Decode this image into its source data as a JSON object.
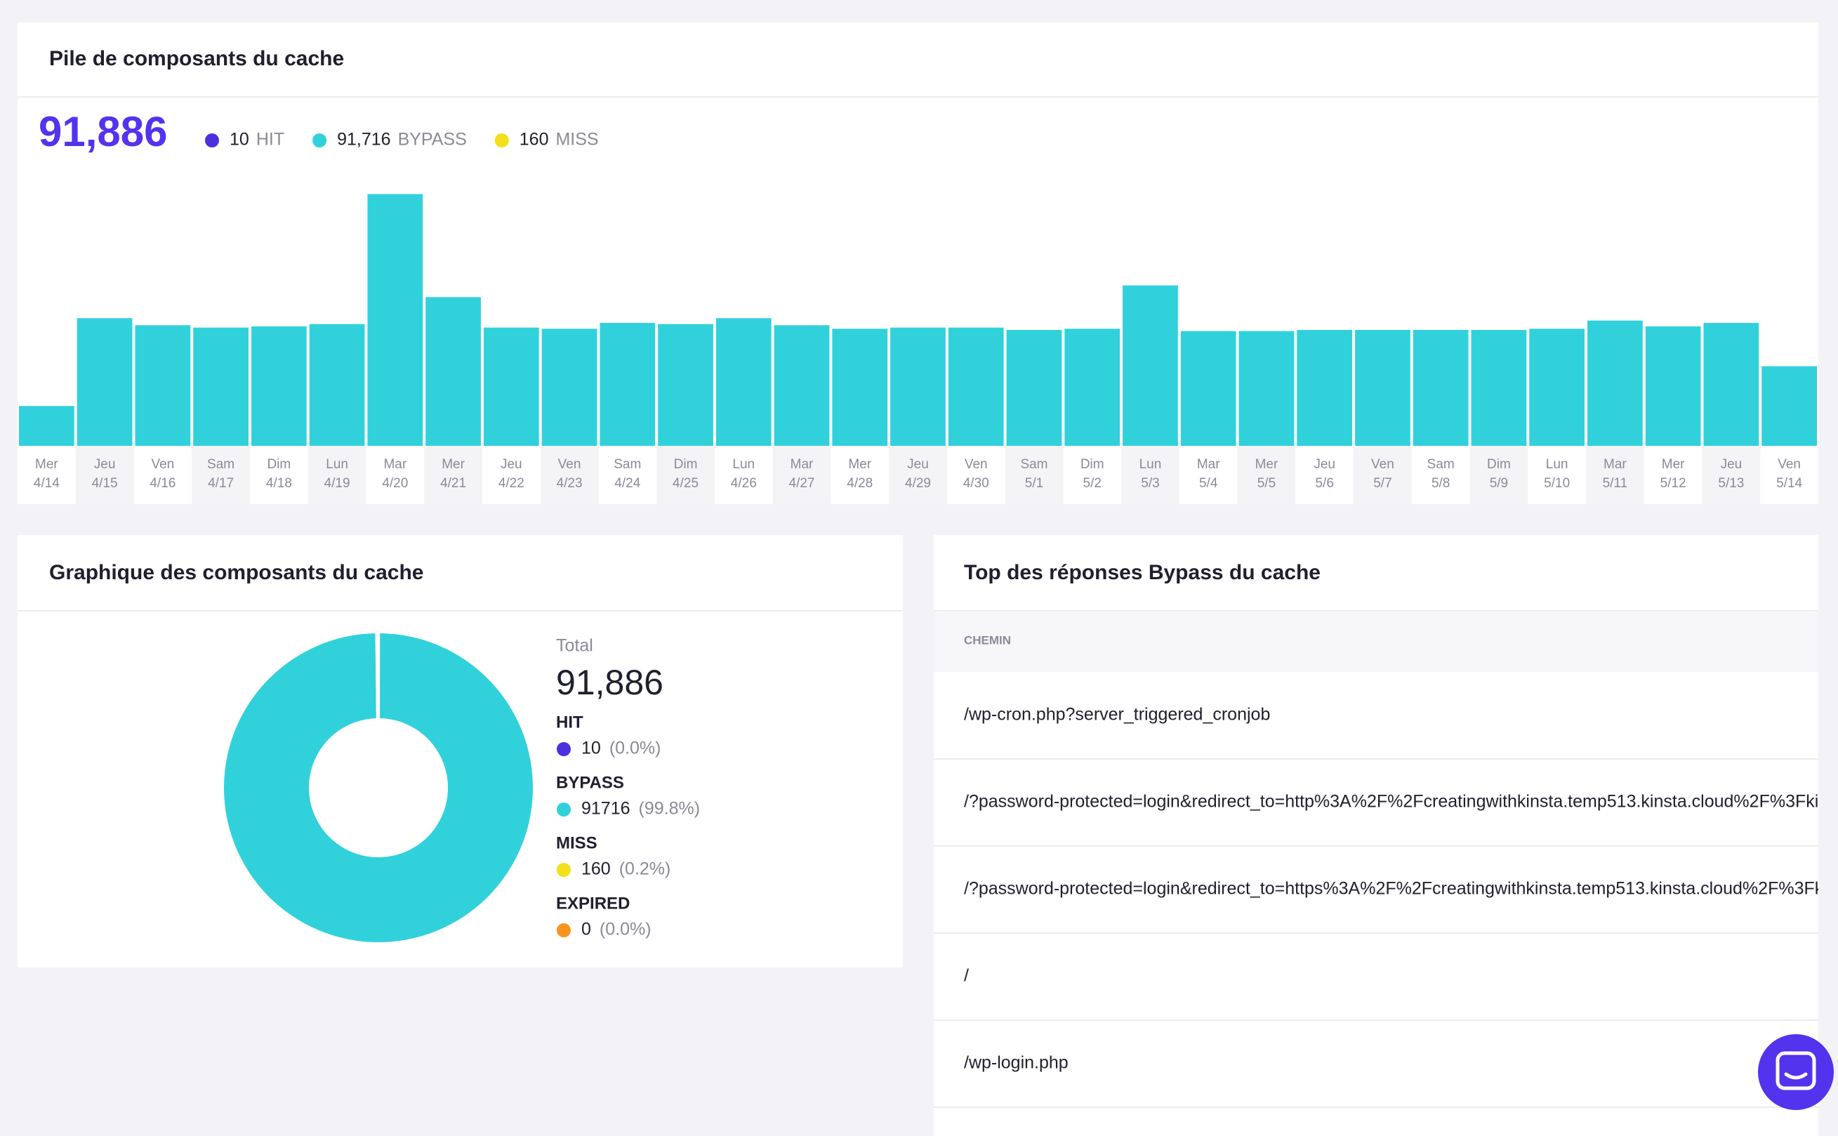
{
  "stack": {
    "title": "Pile de composants du cache",
    "total": "91,886",
    "legend": [
      {
        "count": "10",
        "name": "HIT",
        "color": "#4b2fe0"
      },
      {
        "count": "91,716",
        "name": "BYPASS",
        "color": "#31d1db"
      },
      {
        "count": "160",
        "name": "MISS",
        "color": "#f2e01a"
      }
    ],
    "chart_data": {
      "type": "bar",
      "color": "#31d1db",
      "ylim": [
        0,
        6400
      ],
      "categories": [
        [
          "Mer",
          "4/14"
        ],
        [
          "Jeu",
          "4/15"
        ],
        [
          "Ven",
          "4/16"
        ],
        [
          "Sam",
          "4/17"
        ],
        [
          "Dim",
          "4/18"
        ],
        [
          "Lun",
          "4/19"
        ],
        [
          "Mar",
          "4/20"
        ],
        [
          "Mer",
          "4/21"
        ],
        [
          "Jeu",
          "4/22"
        ],
        [
          "Ven",
          "4/23"
        ],
        [
          "Sam",
          "4/24"
        ],
        [
          "Dim",
          "4/25"
        ],
        [
          "Lun",
          "4/26"
        ],
        [
          "Mar",
          "4/27"
        ],
        [
          "Mer",
          "4/28"
        ],
        [
          "Jeu",
          "4/29"
        ],
        [
          "Ven",
          "4/30"
        ],
        [
          "Sam",
          "5/1"
        ],
        [
          "Dim",
          "5/2"
        ],
        [
          "Lun",
          "5/3"
        ],
        [
          "Mar",
          "5/4"
        ],
        [
          "Mer",
          "5/5"
        ],
        [
          "Jeu",
          "5/6"
        ],
        [
          "Ven",
          "5/7"
        ],
        [
          "Sam",
          "5/8"
        ],
        [
          "Dim",
          "5/9"
        ],
        [
          "Lun",
          "5/10"
        ],
        [
          "Mar",
          "5/11"
        ],
        [
          "Mer",
          "5/12"
        ],
        [
          "Jeu",
          "5/13"
        ],
        [
          "Ven",
          "5/14"
        ]
      ],
      "values": [
        968,
        3102,
        2931,
        2874,
        2903,
        2960,
        6119,
        3614,
        2874,
        2846,
        2988,
        2960,
        3102,
        2931,
        2846,
        2874,
        2874,
        2817,
        2846,
        3899,
        2789,
        2789,
        2817,
        2817,
        2817,
        2817,
        2846,
        3045,
        2903,
        2988,
        1935
      ]
    }
  },
  "breakdown": {
    "title": "Graphique des composants du cache",
    "total_label": "Total",
    "total": "91,886",
    "chart_data": {
      "type": "donut",
      "categories": [
        "HIT",
        "BYPASS",
        "MISS",
        "EXPIRED"
      ],
      "values": [
        10,
        91716,
        160,
        0
      ],
      "value_labels": [
        "10",
        "91716",
        "160",
        "0"
      ],
      "percent_labels": [
        "(0.0%)",
        "(99.8%)",
        "(0.2%)",
        "(0.0%)"
      ],
      "colors": [
        "#4b2fe0",
        "#31d1db",
        "#f2e01a",
        "#f7931e"
      ]
    }
  },
  "table": {
    "title": "Top des réponses Bypass du cache",
    "header": "CHEMIN",
    "rows": [
      "/wp-cron.php?server_triggered_cronjob",
      "/?password-protected=login&redirect_to=http%3A%2F%2Fcreatingwithkinsta.temp513.kinsta.cloud%2F%3Fki",
      "/?password-protected=login&redirect_to=https%3A%2F%2Fcreatingwithkinsta.temp513.kinsta.cloud%2F%3Fk",
      "/",
      "/wp-login.php"
    ]
  }
}
